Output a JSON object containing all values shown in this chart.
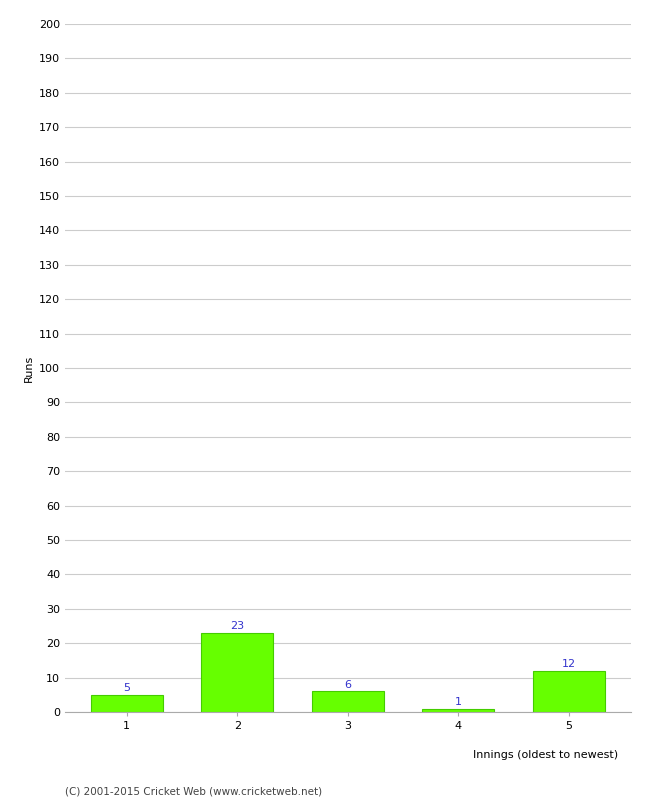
{
  "categories": [
    1,
    2,
    3,
    4,
    5
  ],
  "values": [
    5,
    23,
    6,
    1,
    12
  ],
  "bar_color": "#66ff00",
  "bar_edge_color": "#44cc00",
  "xlabel": "Innings (oldest to newest)",
  "ylabel": "Runs",
  "ylim": [
    0,
    200
  ],
  "yticks": [
    0,
    10,
    20,
    30,
    40,
    50,
    60,
    70,
    80,
    90,
    100,
    110,
    120,
    130,
    140,
    150,
    160,
    170,
    180,
    190,
    200
  ],
  "label_color": "#3333cc",
  "label_fontsize": 8,
  "axis_fontsize": 8,
  "tick_fontsize": 8,
  "footer_text": "(C) 2001-2015 Cricket Web (www.cricketweb.net)",
  "footer_fontsize": 7.5,
  "background_color": "#ffffff",
  "grid_color": "#cccccc",
  "bar_width": 0.65
}
